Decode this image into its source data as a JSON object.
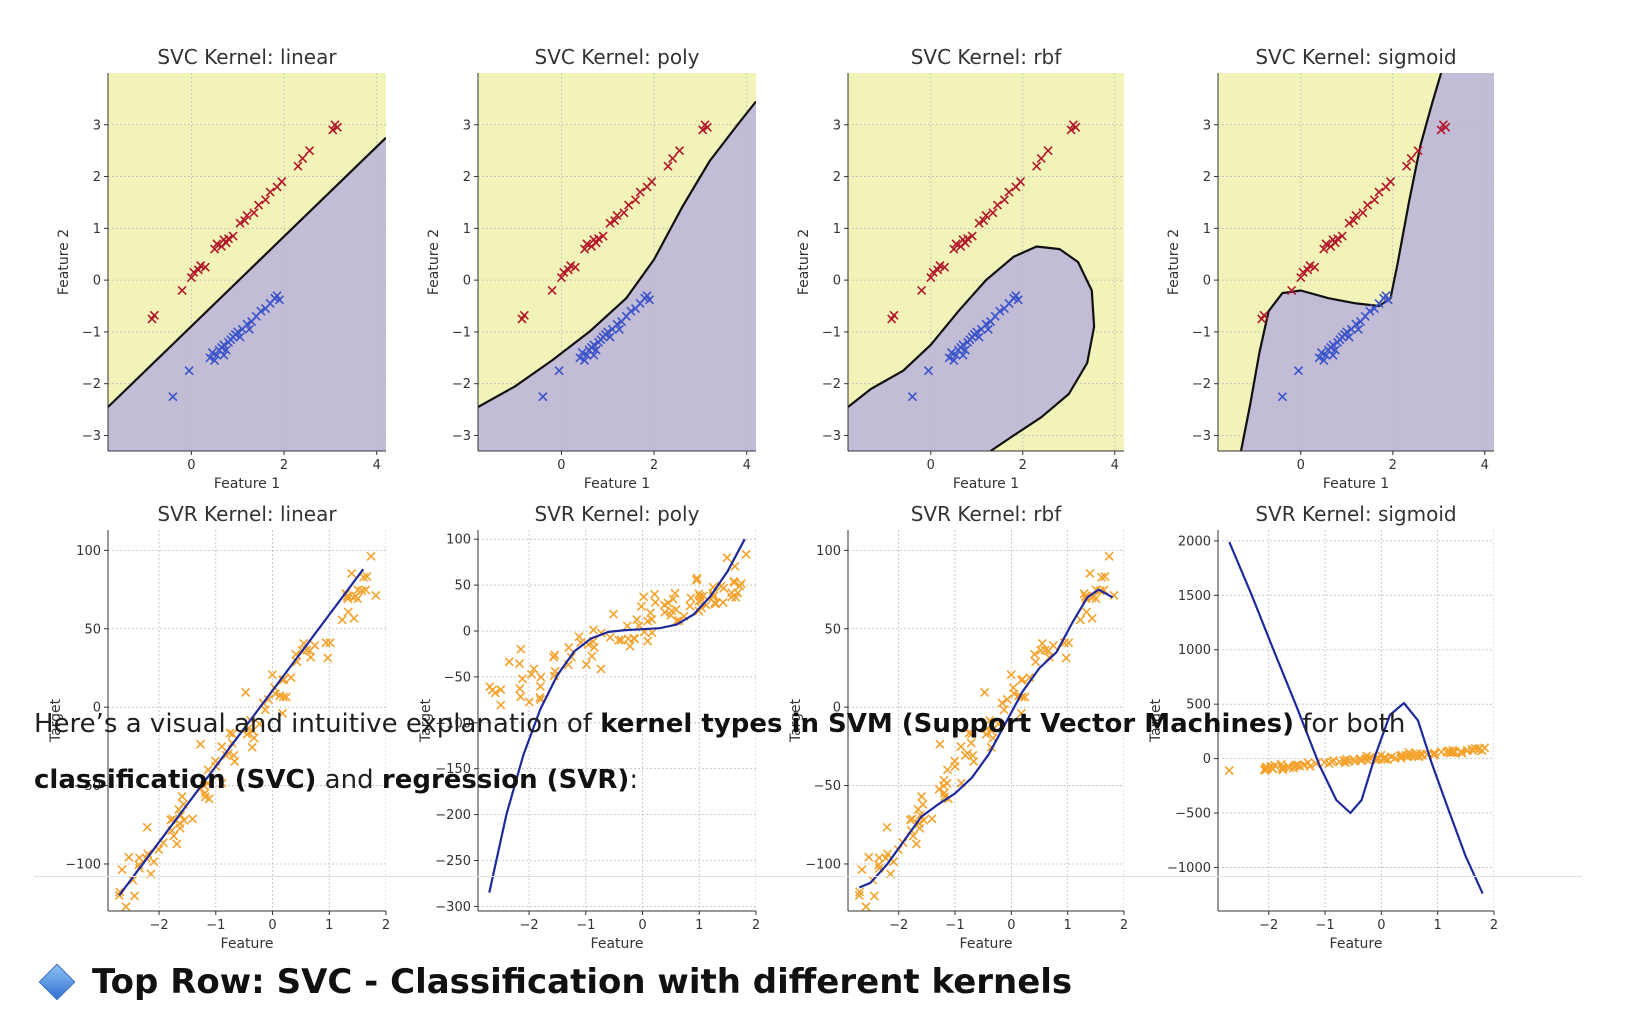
{
  "chart_data": [
    {
      "type": "scatter",
      "title": "SVC Kernel: linear",
      "xlabel": "Feature 1",
      "ylabel": "Feature 2",
      "xlim": [
        -1.8,
        4.2
      ],
      "ylim": [
        -3.3,
        4.0
      ],
      "xticks": [
        0,
        2,
        4
      ],
      "yticks": [
        -3,
        -2,
        -1,
        0,
        1,
        2,
        3
      ],
      "grid": true,
      "region_colors": {
        "class_top": "#f1f3b8",
        "class_bottom": "#c3bcd6"
      },
      "decision_boundary": {
        "x": [
          -1.8,
          4.2
        ],
        "y": [
          -2.45,
          2.75
        ]
      }
    },
    {
      "type": "scatter",
      "title": "SVC Kernel: poly",
      "xlabel": "Feature 1",
      "ylabel": "Feature 2",
      "xlim": [
        -1.8,
        4.2
      ],
      "ylim": [
        -3.3,
        4.0
      ],
      "xticks": [
        0,
        2,
        4
      ],
      "yticks": [
        -3,
        -2,
        -1,
        0,
        1,
        2,
        3
      ],
      "grid": true,
      "region_colors": {
        "class_top": "#f1f3b8",
        "class_bottom": "#c3bcd6"
      },
      "decision_boundary": {
        "x": [
          -1.8,
          -1.0,
          -0.2,
          0.6,
          1.4,
          2.0,
          2.6,
          3.2,
          3.8,
          4.2
        ],
        "y": [
          -2.45,
          -2.05,
          -1.55,
          -1.0,
          -0.35,
          0.4,
          1.4,
          2.3,
          3.0,
          3.45
        ]
      }
    },
    {
      "type": "scatter",
      "title": "SVC Kernel: rbf",
      "xlabel": "Feature 1",
      "ylabel": "Feature 2",
      "xlim": [
        -1.8,
        4.2
      ],
      "ylim": [
        -3.3,
        4.0
      ],
      "xticks": [
        0,
        2,
        4
      ],
      "yticks": [
        -3,
        -2,
        -1,
        0,
        1,
        2,
        3
      ],
      "grid": true,
      "region_colors": {
        "class_top": "#f1f3b8",
        "class_bottom": "#c3bcd6"
      },
      "decision_boundary": {
        "x": [
          -1.8,
          -1.3,
          -0.6,
          0.0,
          0.6,
          1.2,
          1.8,
          2.3,
          2.8,
          3.2,
          3.5,
          3.55,
          3.4,
          3.0,
          2.4,
          1.8,
          1.3
        ],
        "y": [
          -2.45,
          -2.1,
          -1.75,
          -1.25,
          -0.6,
          0.0,
          0.45,
          0.65,
          0.6,
          0.35,
          -0.2,
          -0.9,
          -1.6,
          -2.2,
          -2.65,
          -3.0,
          -3.3
        ]
      }
    },
    {
      "type": "scatter",
      "title": "SVC Kernel: sigmoid",
      "xlabel": "Feature 1",
      "ylabel": "Feature 2",
      "xlim": [
        -1.8,
        4.2
      ],
      "ylim": [
        -3.3,
        4.0
      ],
      "xticks": [
        0,
        2,
        4
      ],
      "yticks": [
        -3,
        -2,
        -1,
        0,
        1,
        2,
        3
      ],
      "grid": true,
      "region_colors": {
        "class_top": "#f1f3b8",
        "class_bottom": "#c3bcd6"
      },
      "decision_boundary": {
        "x": [
          -1.3,
          -1.1,
          -0.9,
          -0.7,
          -0.4,
          0.0,
          0.6,
          1.2,
          1.7,
          1.95,
          2.1,
          2.35,
          2.6,
          2.85,
          3.05
        ],
        "y": [
          -3.3,
          -2.4,
          -1.4,
          -0.6,
          -0.25,
          -0.2,
          -0.35,
          -0.45,
          -0.5,
          -0.35,
          0.3,
          1.5,
          2.6,
          3.4,
          4.0
        ]
      }
    },
    {
      "type": "scatter",
      "title": "SVR Kernel: linear",
      "xlabel": "Feature",
      "ylabel": "Target",
      "xlim": [
        -2.9,
        2.0
      ],
      "ylim": [
        -130,
        113
      ],
      "xticks": [
        -2,
        -1,
        0,
        1,
        2
      ],
      "yticks": [
        -100,
        -50,
        0,
        50,
        100
      ],
      "grid": true,
      "fit": {
        "x": [
          -2.7,
          1.6
        ],
        "y": [
          -120,
          88
        ]
      }
    },
    {
      "type": "scatter",
      "title": "SVR Kernel: poly",
      "xlabel": "Feature",
      "ylabel": "Target",
      "xlim": [
        -2.9,
        2.0
      ],
      "ylim": [
        -305,
        110
      ],
      "xticks": [
        -2,
        -1,
        0,
        1,
        2
      ],
      "yticks": [
        -300,
        -250,
        -200,
        -150,
        -100,
        -50,
        0,
        50,
        100
      ],
      "grid": true,
      "fit": {
        "x": [
          -2.7,
          -2.4,
          -2.1,
          -1.8,
          -1.5,
          -1.2,
          -0.9,
          -0.6,
          -0.3,
          0.0,
          0.3,
          0.6,
          0.9,
          1.2,
          1.5,
          1.8
        ],
        "y": [
          -285,
          -200,
          -135,
          -85,
          -48,
          -22,
          -8,
          -1,
          1,
          2,
          3,
          7,
          18,
          38,
          65,
          100
        ]
      }
    },
    {
      "type": "scatter",
      "title": "SVR Kernel: rbf",
      "xlabel": "Feature",
      "ylabel": "Target",
      "xlim": [
        -2.9,
        2.0
      ],
      "ylim": [
        -130,
        113
      ],
      "xticks": [
        -2,
        -1,
        0,
        1,
        2
      ],
      "yticks": [
        -100,
        -50,
        0,
        50,
        100
      ],
      "grid": true,
      "fit": {
        "x": [
          -2.7,
          -2.5,
          -2.2,
          -1.9,
          -1.6,
          -1.3,
          -1.0,
          -0.7,
          -0.4,
          -0.1,
          0.2,
          0.5,
          0.8,
          1.1,
          1.35,
          1.55,
          1.8
        ],
        "y": [
          -115,
          -112,
          -100,
          -85,
          -70,
          -62,
          -55,
          -45,
          -30,
          -10,
          10,
          25,
          35,
          55,
          70,
          75,
          70
        ]
      }
    },
    {
      "type": "scatter",
      "title": "SVR Kernel: sigmoid",
      "xlabel": "Feature",
      "ylabel": "Target",
      "xlim": [
        -2.9,
        2.0
      ],
      "ylim": [
        -1400,
        2100
      ],
      "xticks": [
        -2,
        -1,
        0,
        1,
        2
      ],
      "yticks": [
        -1000,
        -500,
        0,
        500,
        1000,
        1500,
        2000
      ],
      "grid": true,
      "fit": {
        "x": [
          -2.7,
          -2.3,
          -1.9,
          -1.5,
          -1.1,
          -0.8,
          -0.55,
          -0.35,
          -0.1,
          0.15,
          0.4,
          0.65,
          0.9,
          1.2,
          1.5,
          1.8
        ],
        "y": [
          1990,
          1500,
          980,
          470,
          -60,
          -380,
          -500,
          -380,
          40,
          400,
          510,
          350,
          -50,
          -480,
          -900,
          -1240
        ]
      }
    }
  ],
  "text": {
    "intro_plain_1": "Here’s a visual and intuitive explanation of ",
    "intro_bold_1": "kernel types in SVM (Support Vector Machines)",
    "intro_plain_2": " for both ",
    "intro_bold_2": "classification (SVC)",
    "intro_plain_3": " and ",
    "intro_bold_3": "regression (SVR)",
    "intro_plain_4": ":",
    "heading": "Top Row: SVC - Classification with different kernels",
    "heading_icon": "blue-diamond-icon"
  },
  "colors": {
    "class_red": "#b2182b",
    "class_blue": "#3a53c9",
    "points_orange": "#f4a22c",
    "fit_line": "#1f2a9c",
    "boundary": "#111111"
  }
}
